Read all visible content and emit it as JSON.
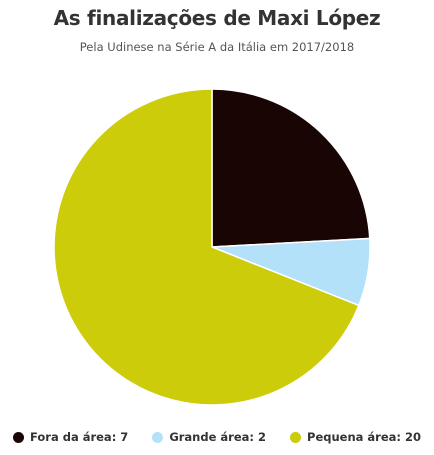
{
  "chart_data": {
    "type": "pie",
    "title": "As finalizações de Maxi López",
    "subtitle": "Pela Udinese na Série A da Itália em 2017/2018",
    "categories": [
      "Fora da área",
      "Grande área",
      "Pequena área"
    ],
    "values": [
      7,
      2,
      20
    ],
    "colors": [
      "#1a0505",
      "#b3e1fa",
      "#cccc0a"
    ],
    "legend": [
      {
        "label": "Fora da área: 7",
        "color": "#1a0505"
      },
      {
        "label": "Grande área: 2",
        "color": "#b3e1fa"
      },
      {
        "label": "Pequena área: 20",
        "color": "#cccc0a"
      }
    ],
    "legend_position": "bottom"
  }
}
